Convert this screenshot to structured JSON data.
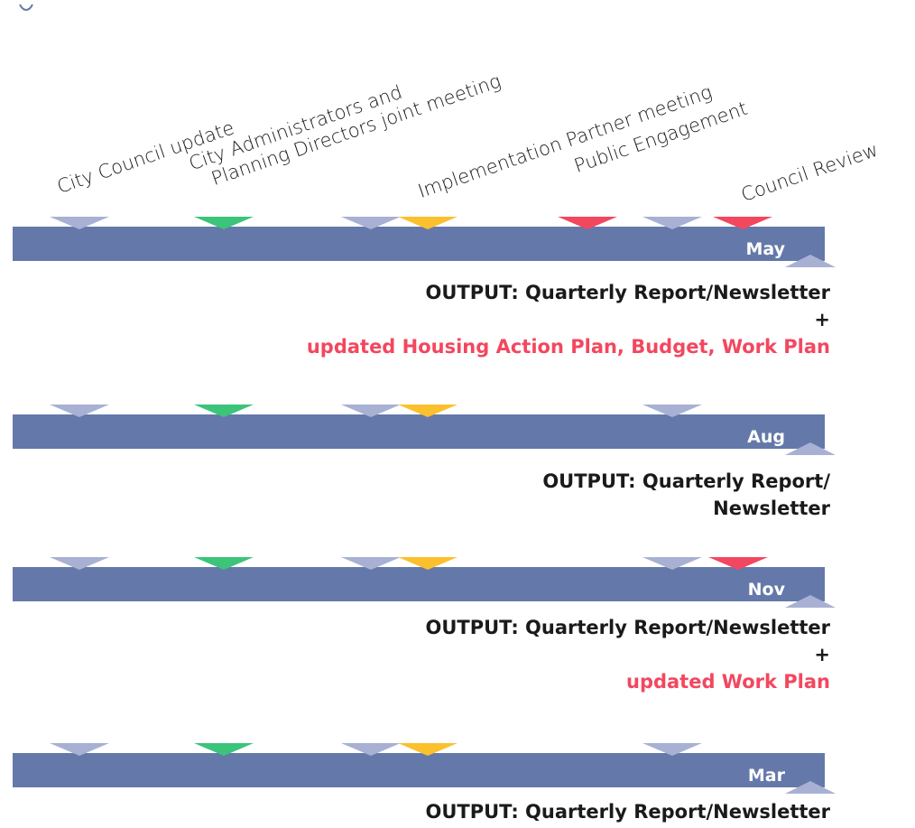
{
  "columns": [
    {
      "lines": [
        "City Council update"
      ]
    },
    {
      "lines": [
        "City Administrators and",
        "Planning Directors joint meeting"
      ]
    },
    {
      "lines": [
        "Implementation Partner meeting"
      ]
    },
    {
      "lines": [
        "Public Engagement"
      ]
    },
    {
      "lines": [
        "Council Review"
      ]
    }
  ],
  "colors": {
    "bar": "#6479aa",
    "grey_marker": "#a8b1d3",
    "green_marker": "#3bc47a",
    "gold_marker": "#fbc02d",
    "red_marker": "#f3475f"
  },
  "rows": [
    {
      "month": "May",
      "markers": [
        "grey",
        "green",
        "grey",
        "gold",
        "red",
        "grey",
        "red"
      ],
      "output": [
        "OUTPUT: Quarterly Report/Newsletter",
        "+"
      ],
      "output_highlight": [
        "updated Housing Action Plan, Budget, Work Plan"
      ]
    },
    {
      "month": "Aug",
      "markers": [
        "grey",
        "green",
        "grey",
        "gold",
        "grey"
      ],
      "output": [
        "OUTPUT: Quarterly Report/",
        "Newsletter"
      ],
      "output_highlight": []
    },
    {
      "month": "Nov",
      "markers": [
        "grey",
        "green",
        "grey",
        "gold",
        "grey",
        "red"
      ],
      "output": [
        "OUTPUT: Quarterly Report/Newsletter",
        "+"
      ],
      "output_highlight": [
        "updated Work Plan"
      ]
    },
    {
      "month": "Mar",
      "markers": [
        "grey",
        "green",
        "grey",
        "gold",
        "grey"
      ],
      "output": [
        "OUTPUT: Quarterly Report/Newsletter"
      ],
      "output_highlight": []
    }
  ]
}
